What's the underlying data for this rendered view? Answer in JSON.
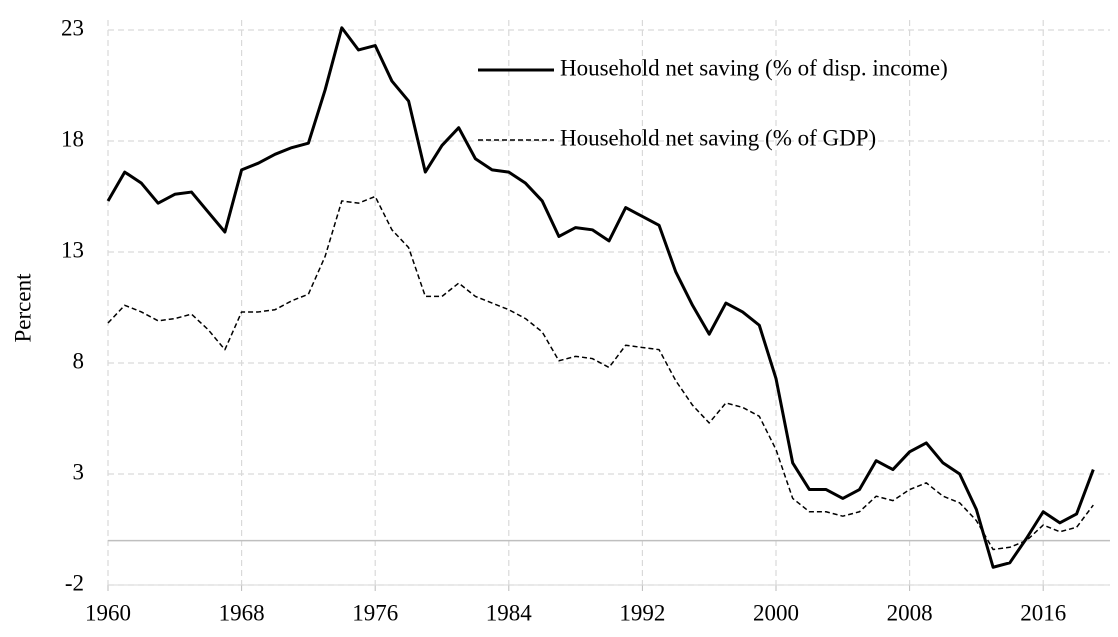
{
  "chart_data": {
    "type": "line",
    "y_label": "Percent",
    "x": [
      1960,
      1961,
      1962,
      1963,
      1964,
      1965,
      1966,
      1967,
      1968,
      1969,
      1970,
      1971,
      1972,
      1973,
      1974,
      1975,
      1976,
      1977,
      1978,
      1979,
      1980,
      1981,
      1982,
      1983,
      1984,
      1985,
      1986,
      1987,
      1988,
      1989,
      1990,
      1991,
      1992,
      1993,
      1994,
      1995,
      1996,
      1997,
      1998,
      1999,
      2000,
      2001,
      2002,
      2003,
      2004,
      2005,
      2006,
      2007,
      2008,
      2009,
      2010,
      2011,
      2012,
      2013,
      2014,
      2015,
      2016,
      2017,
      2018,
      2019
    ],
    "series": [
      {
        "name": "Household net saving (% of disp. income)",
        "color": "#000000",
        "line_style": "solid",
        "values": [
          15.3,
          16.6,
          16.1,
          15.2,
          15.6,
          15.7,
          14.8,
          13.9,
          16.7,
          17.0,
          17.4,
          17.7,
          17.9,
          20.3,
          23.1,
          22.1,
          22.3,
          20.7,
          19.8,
          16.6,
          17.8,
          18.6,
          17.2,
          16.7,
          16.6,
          16.1,
          15.3,
          13.7,
          14.1,
          14.0,
          13.5,
          15.0,
          14.6,
          14.2,
          12.1,
          10.6,
          9.3,
          10.7,
          10.3,
          9.7,
          7.3,
          3.5,
          2.3,
          2.3,
          1.9,
          2.3,
          3.6,
          3.2,
          4.0,
          4.4,
          3.5,
          3.0,
          1.4,
          -1.2,
          -1.0,
          0.1,
          1.3,
          0.8,
          1.2,
          3.2
        ]
      },
      {
        "name": "Household net saving (% of GDP)",
        "color": "#000000",
        "line_style": "dashed",
        "values": [
          9.8,
          10.6,
          10.3,
          9.9,
          10.0,
          10.2,
          9.5,
          8.6,
          10.3,
          10.3,
          10.4,
          10.8,
          11.1,
          12.8,
          15.3,
          15.2,
          15.5,
          14.0,
          13.2,
          11.0,
          11.0,
          11.6,
          11.0,
          10.7,
          10.4,
          10.0,
          9.4,
          8.1,
          8.3,
          8.2,
          7.8,
          8.8,
          8.7,
          8.6,
          7.2,
          6.1,
          5.3,
          6.2,
          6.0,
          5.6,
          4.1,
          1.9,
          1.3,
          1.3,
          1.1,
          1.3,
          2.0,
          1.8,
          2.3,
          2.6,
          2.0,
          1.7,
          0.9,
          -0.4,
          -0.3,
          0.0,
          0.7,
          0.4,
          0.6,
          1.6
        ]
      }
    ],
    "xlim": [
      1960,
      2020
    ],
    "xticks": [
      1960,
      1968,
      1976,
      1984,
      1992,
      2000,
      2008,
      2016
    ],
    "ylim": [
      -2,
      23
    ],
    "yticks": [
      -2,
      3,
      8,
      13,
      18,
      23
    ],
    "grid": true,
    "legend": "upper right"
  }
}
